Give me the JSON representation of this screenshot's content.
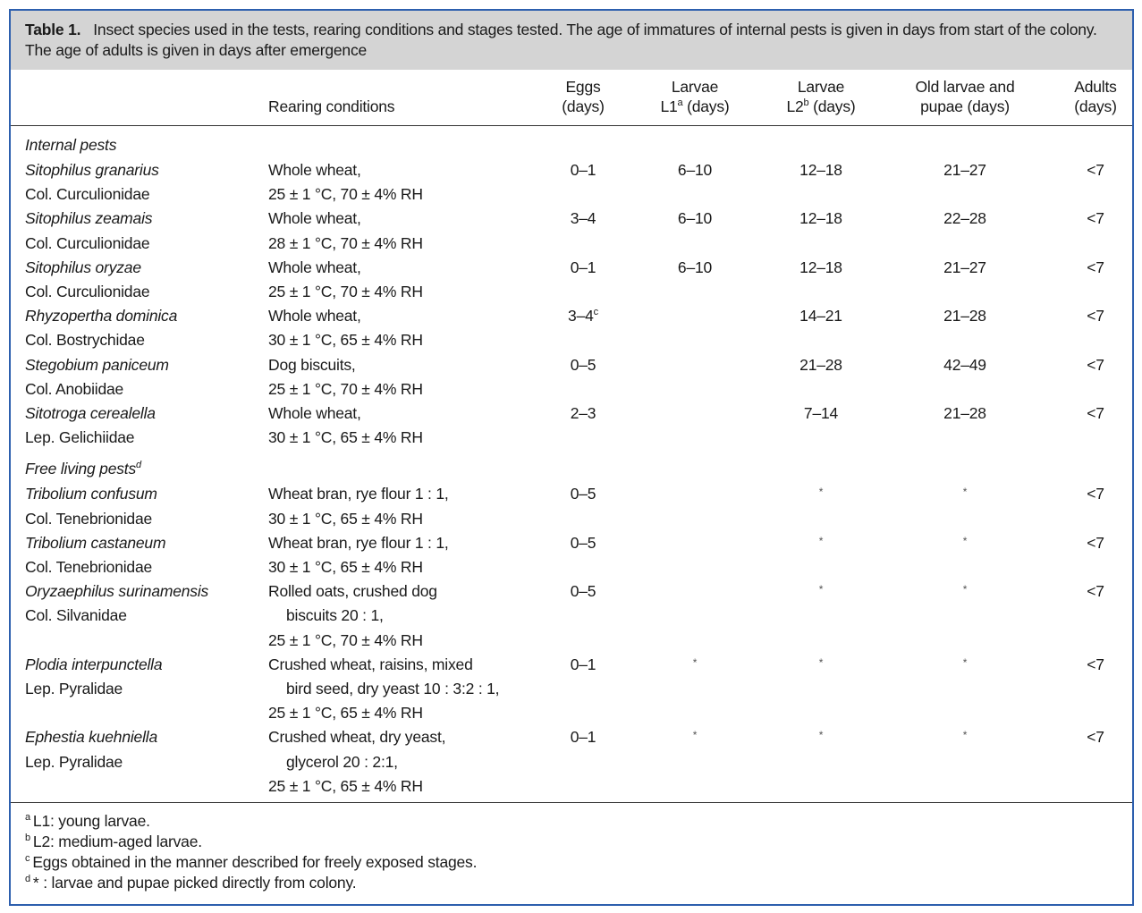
{
  "caption": {
    "label": "Table 1.",
    "text": "Insect species used in the tests, rearing conditions and stages tested. The age of immatures of internal pests is given in days from start of the colony. The age of adults is given in days after emergence"
  },
  "table": {
    "header": {
      "conditions": [
        "Rearing conditions"
      ],
      "eggs": [
        "Eggs",
        "(days)"
      ],
      "l1": [
        "Larvae",
        [
          "L1",
          {
            "sup": "a"
          },
          " (days)"
        ]
      ],
      "l2": [
        "Larvae",
        [
          "L2",
          {
            "sup": "b"
          },
          " (days)"
        ]
      ],
      "old": [
        "Old larvae and",
        "pupae (days)"
      ],
      "adults": [
        "Adults",
        "(days)"
      ]
    },
    "sections": [
      {
        "title": [
          "Internal pests"
        ],
        "rows": [
          {
            "species": "Sitophilus granarius",
            "family": "Col. Curculionidae",
            "conditions": [
              "Whole wheat,",
              "25 ± 1 °C, 70 ± 4% RH"
            ],
            "eggs": "0–1",
            "l1": "6–10",
            "l2": "12–18",
            "old": "21–27",
            "adults": "<7"
          },
          {
            "species": "Sitophilus zeamais",
            "family": "Col. Curculionidae",
            "conditions": [
              "Whole wheat,",
              "28 ± 1 °C, 70 ± 4% RH"
            ],
            "eggs": "3–4",
            "l1": "6–10",
            "l2": "12–18",
            "old": "22–28",
            "adults": "<7"
          },
          {
            "species": "Sitophilus oryzae",
            "family": "Col. Curculionidae",
            "conditions": [
              "Whole wheat,",
              "25 ± 1 °C, 70 ± 4% RH"
            ],
            "eggs": "0–1",
            "l1": "6–10",
            "l2": "12–18",
            "old": "21–27",
            "adults": "<7"
          },
          {
            "species": "Rhyzopertha dominica",
            "family": "Col. Bostrychidae",
            "conditions": [
              "Whole wheat,",
              "30 ± 1 °C, 65 ± 4% RH"
            ],
            "eggs": [
              "3–4",
              {
                "sup": "c"
              }
            ],
            "l2": "14–21",
            "old": "21–28",
            "adults": "<7"
          },
          {
            "species": "Stegobium paniceum",
            "family": "Col. Anobiidae",
            "conditions": [
              "Dog biscuits,",
              "25 ± 1 °C, 70 ± 4% RH"
            ],
            "eggs": "0–5",
            "l2": "21–28",
            "old": "42–49",
            "adults": "<7"
          },
          {
            "species": "Sitotroga cerealella",
            "family": "Lep. Gelichiidae",
            "conditions": [
              "Whole wheat,",
              "30 ± 1 °C, 65 ± 4% RH"
            ],
            "eggs": "2–3",
            "l2": "7–14",
            "old": "21–28",
            "adults": "<7"
          }
        ]
      },
      {
        "title": [
          "Free living pests",
          {
            "sup": "d"
          }
        ],
        "rows": [
          {
            "species": "Tribolium confusum",
            "family": "Col. Tenebrionidae",
            "conditions": [
              "Wheat bran, rye flour 1 : 1,",
              "30 ± 1 °C, 65 ± 4% RH"
            ],
            "eggs": "0–5",
            "l2": "*",
            "old": "*",
            "adults": "<7"
          },
          {
            "species": "Tribolium castaneum",
            "family": "Col. Tenebrionidae",
            "conditions": [
              "Wheat bran, rye flour 1 : 1,",
              "30 ± 1 °C, 65 ± 4% RH"
            ],
            "eggs": "0–5",
            "l2": "*",
            "old": "*",
            "adults": "<7"
          },
          {
            "species": "Oryzaephilus surinamensis",
            "family": "Col. Silvanidae",
            "conditions": [
              "Rolled oats, crushed dog",
              "biscuits 20 : 1,",
              "25 ± 1 °C, 70 ± 4% RH"
            ],
            "eggs": "0–5",
            "l2": "*",
            "old": "*",
            "adults": "<7"
          },
          {
            "species": "Plodia interpunctella",
            "family": "Lep. Pyralidae",
            "conditions": [
              "Crushed wheat, raisins, mixed",
              "bird seed, dry yeast 10 : 3:2 : 1,",
              "25 ± 1 °C, 65 ± 4% RH"
            ],
            "eggs": "0–1",
            "l1": "*",
            "l2": "*",
            "old": "*",
            "adults": "<7"
          },
          {
            "species": "Ephestia kuehniella",
            "family": "Lep. Pyralidae",
            "conditions": [
              "Crushed wheat, dry yeast,",
              "glycerol 20 : 2:1,",
              "25 ± 1 °C, 65 ± 4% RH"
            ],
            "eggs": "0–1",
            "l1": "*",
            "l2": "*",
            "old": "*",
            "adults": "<7"
          }
        ]
      }
    ]
  },
  "footnotes": [
    {
      "mark": "a",
      "text": "L1: young larvae."
    },
    {
      "mark": "b",
      "text": "L2: medium-aged larvae."
    },
    {
      "mark": "c",
      "text": "Eggs obtained in the manner described for freely exposed stages."
    },
    {
      "mark": "d",
      "text": "* : larvae and pupae picked directly from colony."
    }
  ]
}
